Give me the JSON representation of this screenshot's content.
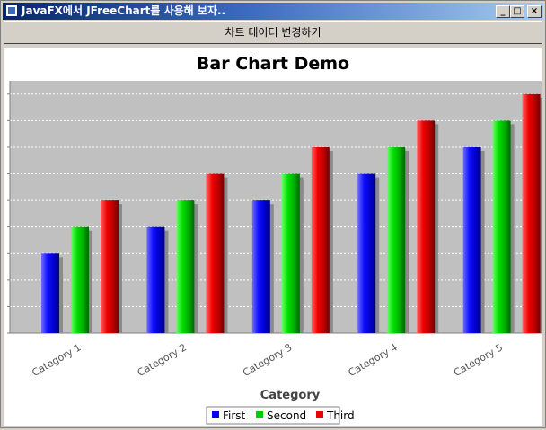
{
  "window": {
    "title": "JavaFX에서 JFreeChart를 사용해 보자..",
    "min_label": "_",
    "max_label": "□",
    "close_label": "×"
  },
  "toolbar": {
    "change_data_label": "차트 데이터 변경하기"
  },
  "colors": {
    "plot_background": "#c0c0c0",
    "series": [
      "#0000ee",
      "#00cc00",
      "#ee0000"
    ]
  },
  "chart_data": {
    "type": "bar",
    "title": "Bar Chart Demo",
    "xlabel": "Category",
    "ylabel": "",
    "categories": [
      "Category 1",
      "Category 2",
      "Category 3",
      "Category 4",
      "Category 5"
    ],
    "series": [
      {
        "name": "First",
        "values": [
          3,
          4,
          5,
          6,
          7
        ]
      },
      {
        "name": "Second",
        "values": [
          4,
          5,
          6,
          7,
          8
        ]
      },
      {
        "name": "Third",
        "values": [
          5,
          6,
          7,
          8,
          9
        ]
      }
    ],
    "ylim": [
      0,
      9.5
    ],
    "grid": true,
    "legend": "bottom"
  }
}
